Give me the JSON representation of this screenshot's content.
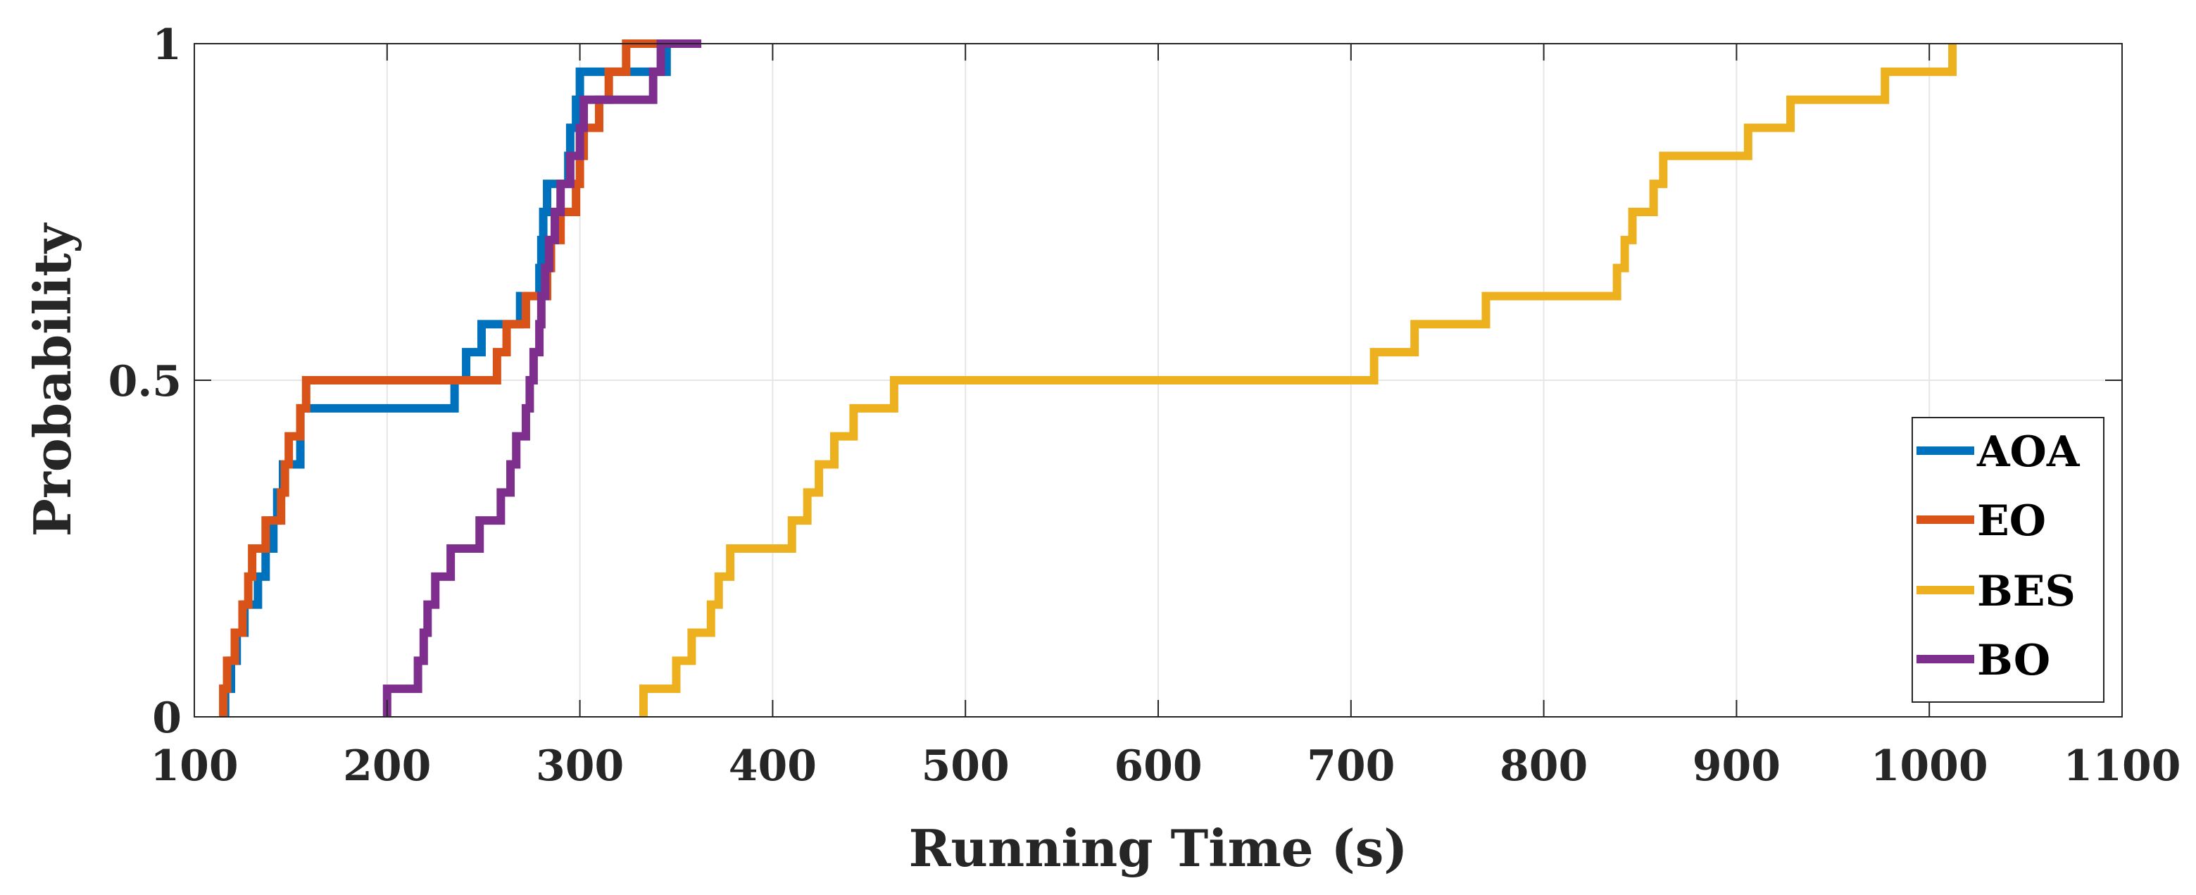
{
  "chart_data": {
    "type": "line",
    "title": "",
    "xlabel": "Running Time (s)",
    "ylabel": "Probability",
    "xlim": [
      100,
      1100
    ],
    "ylim": [
      0,
      1
    ],
    "xticks": [
      100,
      200,
      300,
      400,
      500,
      600,
      700,
      800,
      900,
      1000,
      1100
    ],
    "yticks": [
      0,
      0.5,
      1
    ],
    "xtick_labels": [
      "100",
      "200",
      "300",
      "400",
      "500",
      "600",
      "700",
      "800",
      "900",
      "1000",
      "1100"
    ],
    "ytick_labels": [
      "0",
      "0.5",
      "1"
    ],
    "grid": true,
    "legend_position": "bottom-right",
    "step": true,
    "series": [
      {
        "name": "AOA",
        "color": "#0072BD",
        "x": [
          116,
          119,
          122,
          126,
          133,
          137,
          141,
          143,
          146,
          155,
          235,
          241,
          249,
          269,
          279,
          280,
          281,
          283,
          294,
          295,
          298,
          300,
          307,
          312,
          337,
          345
        ],
        "y": [
          0.0417,
          0.0833,
          0.125,
          0.1667,
          0.2083,
          0.25,
          0.2917,
          0.3333,
          0.375,
          0.4583,
          0.5,
          0.5417,
          0.5833,
          0.625,
          0.6667,
          0.7083,
          0.75,
          0.7917,
          0.8333,
          0.875,
          0.9167,
          0.9583,
          0.9583,
          0.9583,
          0.9583,
          1.0
        ]
      },
      {
        "name": "EO",
        "color": "#D95319",
        "x": [
          115,
          117,
          121,
          125,
          128,
          130,
          137,
          145,
          147,
          149,
          155,
          158,
          163,
          257,
          262,
          272,
          283,
          285,
          290,
          298,
          300,
          302,
          310,
          315,
          324,
          340,
          352,
          358
        ],
        "y": [
          0.0417,
          0.0833,
          0.125,
          0.1667,
          0.2083,
          0.25,
          0.2917,
          0.3333,
          0.375,
          0.4167,
          0.4583,
          0.5,
          0.5,
          0.5417,
          0.5833,
          0.625,
          0.6667,
          0.7083,
          0.75,
          0.7917,
          0.8333,
          0.875,
          0.9167,
          0.9583,
          1.0,
          1.0,
          1.0,
          1.0
        ]
      },
      {
        "name": "BES",
        "color": "#EDB120",
        "x": [
          333,
          350,
          358,
          368,
          372,
          378,
          410,
          418,
          424,
          432,
          442,
          463,
          712,
          733,
          770,
          838,
          842,
          846,
          857,
          862,
          866,
          906,
          928,
          977,
          1012
        ],
        "y": [
          0.0417,
          0.0833,
          0.125,
          0.1667,
          0.2083,
          0.25,
          0.2917,
          0.3333,
          0.375,
          0.4167,
          0.4583,
          0.5,
          0.5417,
          0.5833,
          0.625,
          0.6667,
          0.7083,
          0.75,
          0.7917,
          0.8333,
          0.8333,
          0.875,
          0.9167,
          0.9583,
          1.0
        ]
      },
      {
        "name": "BO",
        "color": "#7E2F8E",
        "x": [
          200,
          216,
          219,
          221,
          225,
          233,
          248,
          259,
          264,
          267,
          272,
          274,
          276,
          279,
          280,
          282,
          284,
          287,
          290,
          295,
          300,
          302,
          305,
          308,
          312,
          338,
          342,
          363
        ],
        "y": [
          0.0417,
          0.0833,
          0.125,
          0.1667,
          0.2083,
          0.25,
          0.2917,
          0.3333,
          0.375,
          0.4167,
          0.4583,
          0.5,
          0.5417,
          0.5833,
          0.625,
          0.6667,
          0.7083,
          0.75,
          0.7917,
          0.8333,
          0.875,
          0.9167,
          0.9167,
          0.9167,
          0.9167,
          0.9583,
          1.0,
          1.0
        ]
      }
    ]
  }
}
